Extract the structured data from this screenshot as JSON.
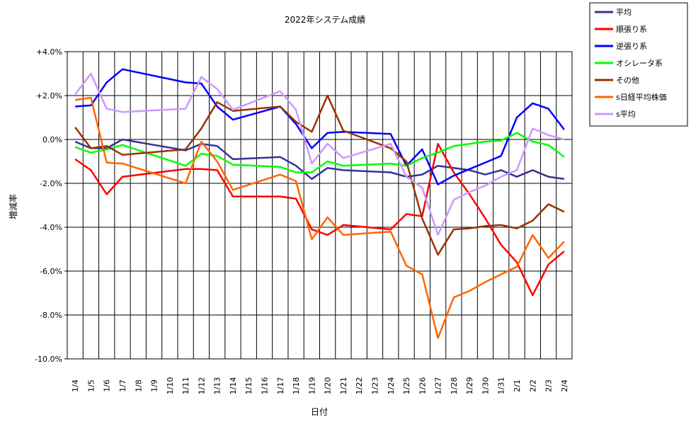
{
  "chart_data": {
    "type": "line",
    "title": "2022年システム成績",
    "xlabel": "日付",
    "ylabel": "増減率",
    "ylim": [
      -10,
      4
    ],
    "y_ticks": [
      "+4.0%",
      "+2.0%",
      "0.0%",
      "-2.0%",
      "-4.0%",
      "-6.0%",
      "-8.0%",
      "-10.0%"
    ],
    "y_tick_values": [
      4,
      2,
      0,
      -2,
      -4,
      -6,
      -8,
      -10
    ],
    "grid": true,
    "legend_position": "top-right",
    "categories": [
      "1/4",
      "1/5",
      "1/6",
      "1/7",
      "1/8",
      "1/9",
      "1/10",
      "1/11",
      "1/12",
      "1/13",
      "1/14",
      "1/15",
      "1/16",
      "1/17",
      "1/18",
      "1/19",
      "1/20",
      "1/21",
      "1/22",
      "1/23",
      "1/24",
      "1/25",
      "1/26",
      "1/27",
      "1/28",
      "1/29",
      "1/30",
      "1/31",
      "2/1",
      "2/2",
      "2/3",
      "2/4"
    ],
    "series": [
      {
        "name": "平均",
        "color": "#333399",
        "x": [
          0,
          1,
          2,
          3,
          7,
          8,
          9,
          10,
          13,
          14,
          15,
          16,
          17,
          20,
          21,
          22,
          23,
          24,
          25,
          26,
          27,
          28,
          29,
          30,
          31
        ],
        "values": [
          -0.1,
          -0.4,
          -0.4,
          0.0,
          -0.5,
          -0.2,
          -0.3,
          -0.9,
          -0.8,
          -1.2,
          -1.8,
          -1.3,
          -1.4,
          -1.5,
          -1.7,
          -1.6,
          -1.2,
          -1.3,
          -1.4,
          -1.6,
          -1.4,
          -1.7,
          -1.4,
          -1.7,
          -1.8
        ]
      },
      {
        "name": "順張り系",
        "color": "#ff0000",
        "x": [
          0,
          1,
          2,
          3,
          7,
          8,
          9,
          10,
          13,
          14,
          15,
          16,
          17,
          20,
          21,
          22,
          23,
          24,
          25,
          26,
          27,
          28,
          29,
          30,
          31
        ],
        "values": [
          -0.9,
          -1.4,
          -2.5,
          -1.7,
          -1.35,
          -1.35,
          -1.4,
          -2.6,
          -2.6,
          -2.7,
          -4.1,
          -4.35,
          -3.9,
          -4.1,
          -3.4,
          -3.5,
          -0.2,
          -1.5,
          -2.5,
          -3.6,
          -4.8,
          -5.6,
          -7.1,
          -5.7,
          -5.1
        ]
      },
      {
        "name": "逆張り系",
        "color": "#0000ff",
        "x": [
          0,
          1,
          2,
          3,
          7,
          8,
          9,
          10,
          13,
          14,
          15,
          16,
          17,
          20,
          21,
          22,
          23,
          24,
          25,
          26,
          27,
          28,
          29,
          30,
          31
        ],
        "values": [
          1.5,
          1.55,
          2.6,
          3.2,
          2.6,
          2.55,
          1.5,
          0.9,
          1.5,
          0.7,
          -0.4,
          0.3,
          0.35,
          0.25,
          -1.2,
          -0.45,
          -2.05,
          -1.65,
          -1.35,
          -1.05,
          -0.75,
          1.0,
          1.65,
          1.4,
          0.45
        ]
      },
      {
        "name": "オシレータ系",
        "color": "#00ff00",
        "x": [
          0,
          1,
          2,
          3,
          7,
          8,
          9,
          10,
          13,
          14,
          15,
          16,
          17,
          20,
          21,
          22,
          23,
          24,
          25,
          26,
          27,
          28,
          29,
          30,
          31
        ],
        "values": [
          -0.35,
          -0.6,
          -0.45,
          -0.25,
          -1.2,
          -0.65,
          -0.75,
          -1.15,
          -1.25,
          -1.5,
          -1.5,
          -1.0,
          -1.2,
          -1.1,
          -1.2,
          -0.85,
          -0.6,
          -0.3,
          -0.2,
          -0.1,
          -0.05,
          0.3,
          -0.1,
          -0.25,
          -0.8
        ]
      },
      {
        "name": "その他",
        "color": "#993300",
        "x": [
          0,
          1,
          2,
          3,
          7,
          8,
          9,
          10,
          13,
          14,
          15,
          16,
          17,
          20,
          21,
          22,
          23,
          24,
          25,
          26,
          27,
          28,
          29,
          30,
          31
        ],
        "values": [
          0.55,
          -0.4,
          -0.3,
          -0.7,
          -0.45,
          0.5,
          1.7,
          1.3,
          1.5,
          0.8,
          0.35,
          2.0,
          0.4,
          -0.4,
          -1.0,
          -3.6,
          -5.25,
          -4.1,
          -4.05,
          -3.95,
          -3.9,
          -4.05,
          -3.7,
          -2.95,
          -3.3
        ]
      },
      {
        "name": "s日経平均株価",
        "color": "#ff6600",
        "x": [
          0,
          1,
          2,
          3,
          7,
          8,
          9,
          10,
          13,
          14,
          15,
          16,
          17,
          20,
          21,
          22,
          23,
          24,
          25,
          26,
          27,
          28,
          29,
          30,
          31
        ],
        "values": [
          1.8,
          1.9,
          -1.05,
          -1.1,
          -2.0,
          -0.1,
          -1.0,
          -2.3,
          -1.6,
          -1.9,
          -4.55,
          -3.55,
          -4.35,
          -4.2,
          -5.75,
          -6.15,
          -9.05,
          -7.2,
          -6.9,
          -6.5,
          -6.15,
          -5.8,
          -4.35,
          -5.4,
          -4.65
        ]
      },
      {
        "name": "s平均",
        "color": "#cc99ff",
        "x": [
          0,
          1,
          2,
          3,
          7,
          8,
          9,
          10,
          13,
          14,
          15,
          16,
          17,
          20,
          21,
          22,
          23,
          24,
          25,
          26,
          27,
          28,
          29,
          30,
          31
        ],
        "values": [
          2.05,
          3.0,
          1.4,
          1.25,
          1.4,
          2.85,
          2.3,
          1.35,
          2.2,
          1.35,
          -1.1,
          -0.2,
          -0.85,
          -0.2,
          -1.7,
          -2.2,
          -4.35,
          -2.75,
          -2.4,
          -2.1,
          -1.7,
          -1.4,
          0.5,
          0.2,
          0.0
        ]
      }
    ]
  }
}
